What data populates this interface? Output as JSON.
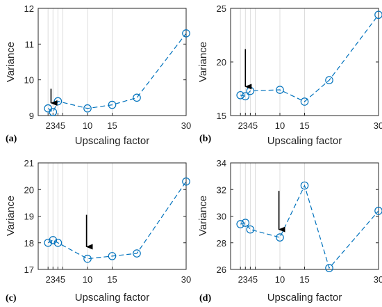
{
  "colors": {
    "series": "#0072BD",
    "grid": "#dcdcdc",
    "axis": "#262626",
    "arrow": "#000000"
  },
  "chart_data": [
    {
      "type": "line",
      "panel_label": "(a)",
      "xlabel": "Upscaling factor",
      "ylabel": "Variance",
      "x": [
        2,
        3,
        4,
        5,
        10,
        15,
        20,
        30
      ],
      "series": [
        {
          "values": [
            9.2,
            9.1,
            9.4,
            null,
            9.2,
            9.3,
            9.5,
            11.3
          ]
        }
      ],
      "xlim": [
        0,
        30
      ],
      "ylim": [
        9,
        12
      ],
      "xticks": [
        2,
        3,
        4,
        5,
        10,
        15,
        30
      ],
      "xtick_labels": [
        "2",
        "3",
        "4",
        "5",
        "10",
        "15",
        "30"
      ],
      "yticks": [
        9,
        10,
        11,
        12
      ],
      "vertical_grid": true,
      "arrow": {
        "x": 2.6,
        "y_from": 9.75,
        "y_to": 9.35
      }
    },
    {
      "type": "line",
      "panel_label": "(b)",
      "xlabel": "Upscaling factor",
      "ylabel": "Variance",
      "x": [
        2,
        3,
        4,
        5,
        10,
        15,
        20,
        30
      ],
      "series": [
        {
          "values": [
            16.9,
            16.8,
            17.3,
            null,
            17.4,
            16.3,
            18.3,
            24.4
          ]
        }
      ],
      "xlim": [
        0,
        30
      ],
      "ylim": [
        15,
        25
      ],
      "xticks": [
        2,
        3,
        4,
        5,
        10,
        15,
        30
      ],
      "xtick_labels": [
        "2",
        "3",
        "4",
        "5",
        "10",
        "15",
        "30"
      ],
      "yticks": [
        15,
        20,
        25
      ],
      "vertical_grid": true,
      "arrow": {
        "x": 3.0,
        "y_from": 21.2,
        "y_to": 17.7
      }
    },
    {
      "type": "line",
      "panel_label": "(c)",
      "xlabel": "Upscaling factor",
      "ylabel": "Variance",
      "x": [
        2,
        3,
        4,
        5,
        10,
        15,
        20,
        30
      ],
      "series": [
        {
          "values": [
            18.0,
            18.1,
            18.0,
            null,
            17.4,
            17.5,
            17.6,
            20.3
          ]
        }
      ],
      "xlim": [
        0,
        30
      ],
      "ylim": [
        17,
        21
      ],
      "xticks": [
        2,
        3,
        4,
        5,
        10,
        15,
        30
      ],
      "xtick_labels": [
        "2",
        "3",
        "4",
        "5",
        "10",
        "15",
        "30"
      ],
      "yticks": [
        17,
        18,
        19,
        20,
        21
      ],
      "vertical_grid": true,
      "arrow": {
        "x": 9.8,
        "y_from": 19.05,
        "y_to": 17.85
      }
    },
    {
      "type": "line",
      "panel_label": "(d)",
      "xlabel": "Upscaling factor",
      "ylabel": "Variance",
      "x": [
        2,
        3,
        4,
        5,
        10,
        15,
        20,
        30
      ],
      "series": [
        {
          "values": [
            29.4,
            29.5,
            29.0,
            null,
            28.4,
            32.3,
            26.1,
            30.4
          ]
        }
      ],
      "xlim": [
        0,
        30
      ],
      "ylim": [
        26,
        34
      ],
      "xticks": [
        2,
        3,
        4,
        5,
        10,
        15,
        30
      ],
      "xtick_labels": [
        "2",
        "3",
        "4",
        "5",
        "10",
        "15",
        "30"
      ],
      "yticks": [
        26,
        28,
        30,
        32,
        34
      ],
      "vertical_grid": true,
      "arrow": {
        "x": 9.8,
        "y_from": 31.9,
        "y_to": 29.0
      }
    }
  ]
}
